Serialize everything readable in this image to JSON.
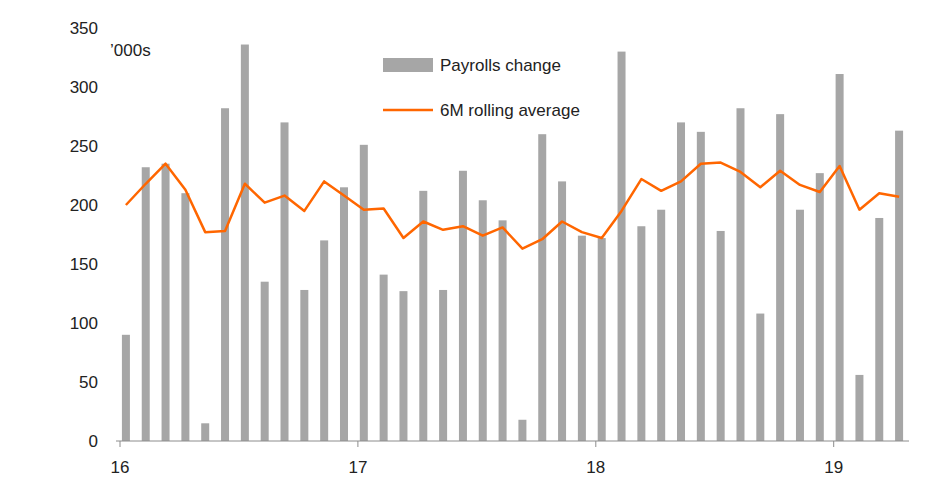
{
  "chart_data": {
    "type": "bar",
    "y_label": "’000s",
    "categories": [
      "16",
      null,
      null,
      null,
      null,
      null,
      null,
      null,
      null,
      null,
      null,
      null,
      "17",
      null,
      null,
      null,
      null,
      null,
      null,
      null,
      null,
      null,
      null,
      null,
      "18",
      null,
      null,
      null,
      null,
      null,
      null,
      null,
      null,
      null,
      null,
      null,
      "19",
      null,
      null,
      null
    ],
    "series": [
      {
        "name": "Payrolls change",
        "type": "bar",
        "color": "#a6a6a6",
        "values": [
          90,
          232,
          235,
          210,
          15,
          282,
          336,
          135,
          270,
          128,
          170,
          215,
          251,
          141,
          127,
          212,
          128,
          229,
          204,
          187,
          18,
          260,
          220,
          174,
          172,
          330,
          182,
          196,
          270,
          262,
          178,
          282,
          108,
          277,
          196,
          227,
          311,
          56,
          189,
          263
        ]
      },
      {
        "name": "6M rolling average",
        "type": "line",
        "color": "#ff6600",
        "values": [
          200,
          218,
          235,
          213,
          177,
          178,
          218,
          202,
          208,
          195,
          220,
          208,
          196,
          197,
          172,
          186,
          179,
          182,
          174,
          181,
          163,
          171,
          186,
          177,
          172,
          195,
          222,
          212,
          220,
          235,
          236,
          228,
          215,
          229,
          217,
          211,
          233,
          196,
          210,
          207
        ]
      }
    ],
    "ylim": [
      0,
      350
    ],
    "yticks": [
      0,
      50,
      100,
      150,
      200,
      250,
      300,
      350
    ],
    "grid": false,
    "legend": "top"
  }
}
